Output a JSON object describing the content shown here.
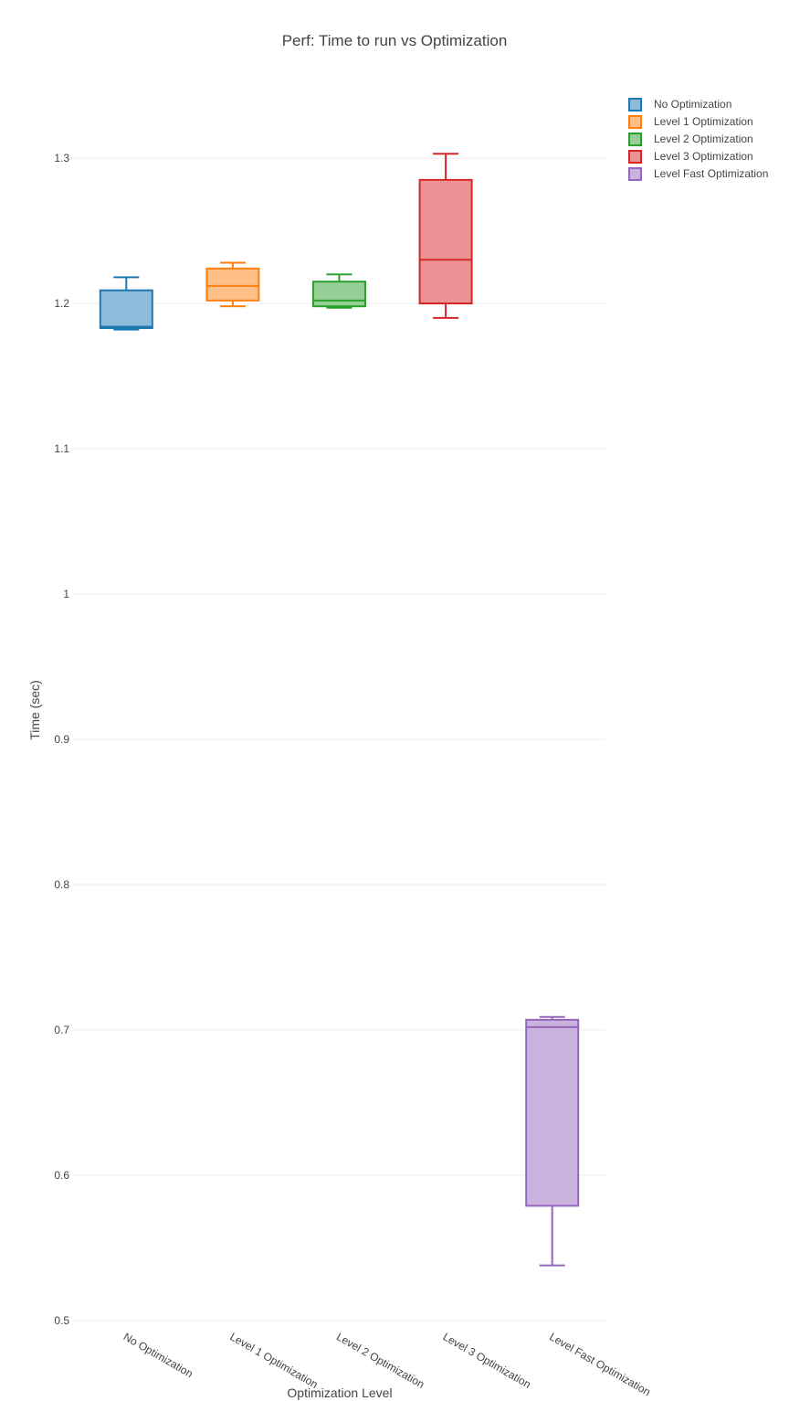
{
  "chart_data": {
    "type": "box",
    "title": "Perf: Time to run vs Optimization",
    "xlabel": "Optimization Level",
    "ylabel": "Time (sec)",
    "ylim": [
      0.5,
      1.34
    ],
    "yticks": [
      0.5,
      0.6,
      0.7,
      0.8,
      0.9,
      1,
      1.1,
      1.2,
      1.3
    ],
    "ytick_labels": [
      "0.5",
      "0.6",
      "0.7",
      "0.8",
      "0.9",
      "1",
      "1.1",
      "1.2",
      "1.3"
    ],
    "grid": true,
    "legend_position": "top-right",
    "categories": [
      "No Optimization",
      "Level 1 Optimization",
      "Level 2 Optimization",
      "Level 3 Optimization",
      "Level Fast Optimization"
    ],
    "series": [
      {
        "name": "No Optimization",
        "color": "#1f77b4",
        "fill": "#8fbbdb",
        "min": 1.182,
        "q1": 1.183,
        "median": 1.184,
        "q3": 1.209,
        "max": 1.218
      },
      {
        "name": "Level 1 Optimization",
        "color": "#ff7f0e",
        "fill": "#ffbf87",
        "min": 1.198,
        "q1": 1.202,
        "median": 1.212,
        "q3": 1.224,
        "max": 1.228
      },
      {
        "name": "Level 2 Optimization",
        "color": "#2ca02c",
        "fill": "#95cf95",
        "min": 1.197,
        "q1": 1.198,
        "median": 1.202,
        "q3": 1.215,
        "max": 1.22
      },
      {
        "name": "Level 3 Optimization",
        "color": "#d62728",
        "fill": "#eb9394",
        "min": 1.19,
        "q1": 1.2,
        "median": 1.23,
        "q3": 1.285,
        "max": 1.303
      },
      {
        "name": "Level Fast Optimization",
        "color": "#9467bd",
        "fill": "#c9b3de",
        "min": 0.538,
        "q1": 0.579,
        "median": 0.702,
        "q3": 0.707,
        "max": 0.709
      }
    ]
  }
}
